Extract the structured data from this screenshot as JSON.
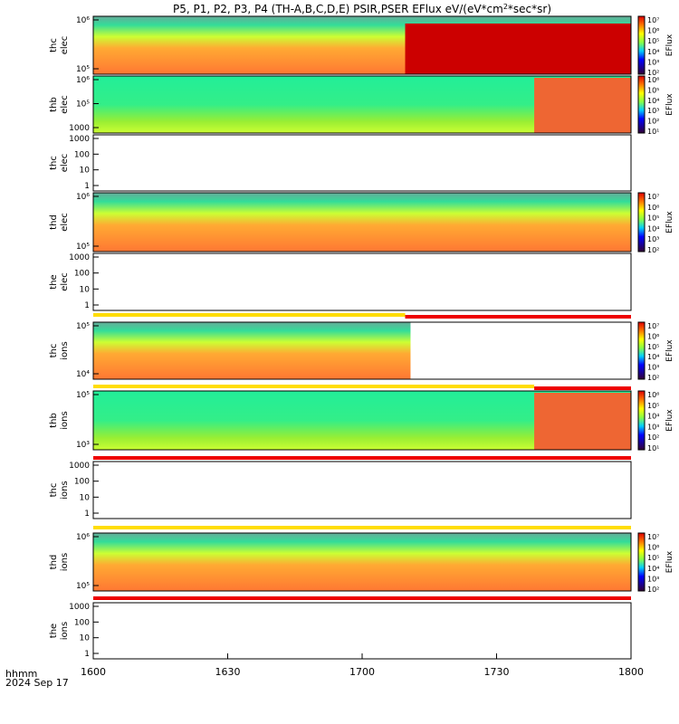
{
  "title": "P5, P1, P2, P3, P4 (TH-A,B,C,D,E) PSIR,PSER EFlux eV/(eV*cm",
  "title_sup": "2",
  "title_end": "*sec*sr)",
  "colorbar_label": "EFlux",
  "footer": {
    "line1": "hhmm",
    "line2": "2024 Sep 17"
  },
  "chart_data": {
    "type": "heatmap",
    "x_ticks": [
      "1600",
      "1630",
      "1700",
      "1730",
      "1800"
    ],
    "panels": [
      {
        "name": "thc elec",
        "l1": "thc",
        "l2": "elec",
        "y_ticks": [
          "10⁵",
          "10⁶"
        ],
        "colorbar": [
          "10⁷",
          "10⁶",
          "10⁵",
          "10⁴",
          "10³",
          "10²"
        ],
        "has_data": true
      },
      {
        "name": "thb elec",
        "l1": "thb",
        "l2": "elec",
        "y_ticks": [
          "1000",
          "10⁵",
          "10⁶"
        ],
        "colorbar": [
          "10⁶",
          "10⁵",
          "10⁴",
          "10³",
          "10²",
          "10¹"
        ],
        "has_data": true
      },
      {
        "name": "thc elec (empty)",
        "l1": "thc",
        "l2": "elec",
        "y_ticks": [
          "1",
          "10",
          "100",
          "1000"
        ],
        "colorbar": [],
        "has_data": false
      },
      {
        "name": "thd elec",
        "l1": "thd",
        "l2": "elec",
        "y_ticks": [
          "10⁵",
          "10⁶"
        ],
        "colorbar": [
          "10⁷",
          "10⁶",
          "10⁵",
          "10⁴",
          "10³",
          "10²"
        ],
        "has_data": true
      },
      {
        "name": "the elec",
        "l1": "the",
        "l2": "elec",
        "y_ticks": [
          "1",
          "10",
          "100",
          "1000"
        ],
        "colorbar": [],
        "has_data": false
      },
      {
        "name": "thc ions",
        "l1": "thc",
        "l2": "ions",
        "y_ticks": [
          "10⁴",
          "10⁵"
        ],
        "colorbar": [
          "10⁷",
          "10⁶",
          "10⁵",
          "10⁴",
          "10³",
          "10²"
        ],
        "has_data": true
      },
      {
        "name": "thb ions",
        "l1": "thb",
        "l2": "ions",
        "y_ticks": [
          "10³",
          "10⁵"
        ],
        "colorbar": [
          "10⁶",
          "10⁵",
          "10⁴",
          "10³",
          "10²",
          "10¹"
        ],
        "has_data": true
      },
      {
        "name": "thc ions (empty)",
        "l1": "thc",
        "l2": "ions",
        "y_ticks": [
          "1",
          "10",
          "100",
          "1000"
        ],
        "colorbar": [],
        "has_data": false
      },
      {
        "name": "thd ions",
        "l1": "thd",
        "l2": "ions",
        "y_ticks": [
          "10⁵",
          "10⁶"
        ],
        "colorbar": [
          "10⁷",
          "10⁶",
          "10⁵",
          "10⁴",
          "10³",
          "10²"
        ],
        "has_data": true
      },
      {
        "name": "the ions",
        "l1": "the",
        "l2": "ions",
        "y_ticks": [
          "1",
          "10",
          "100",
          "1000"
        ],
        "colorbar": [],
        "has_data": false
      }
    ]
  }
}
